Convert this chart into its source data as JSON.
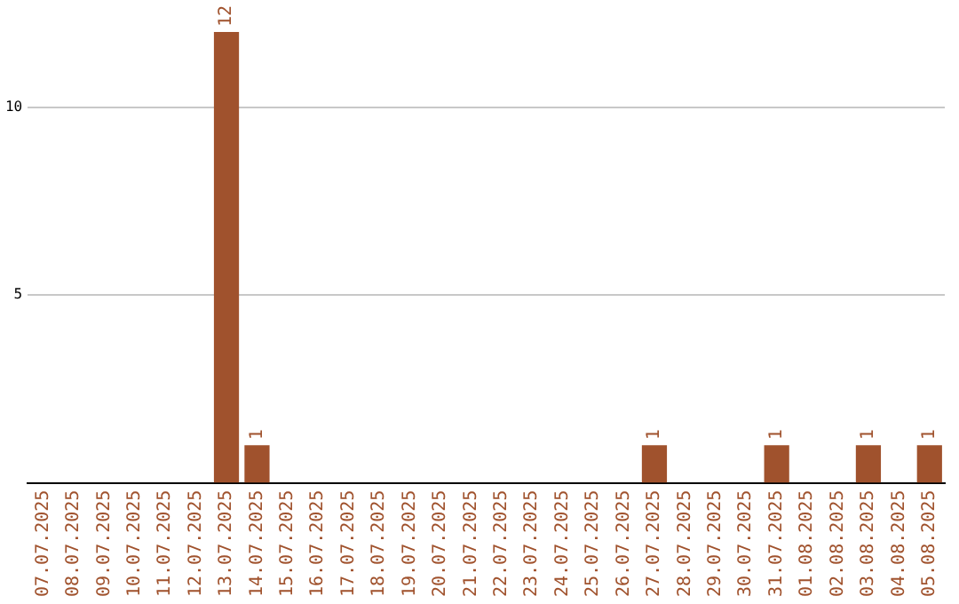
{
  "chart_data": {
    "type": "bar",
    "categories": [
      "07.07.2025",
      "08.07.2025",
      "09.07.2025",
      "10.07.2025",
      "11.07.2025",
      "12.07.2025",
      "13.07.2025",
      "14.07.2025",
      "15.07.2025",
      "16.07.2025",
      "17.07.2025",
      "18.07.2025",
      "19.07.2025",
      "20.07.2025",
      "21.07.2025",
      "22.07.2025",
      "23.07.2025",
      "24.07.2025",
      "25.07.2025",
      "26.07.2025",
      "27.07.2025",
      "28.07.2025",
      "29.07.2025",
      "30.07.2025",
      "31.07.2025",
      "01.08.2025",
      "02.08.2025",
      "03.08.2025",
      "04.08.2025",
      "05.08.2025"
    ],
    "values": [
      0,
      0,
      0,
      0,
      0,
      0,
      12,
      1,
      0,
      0,
      0,
      0,
      0,
      0,
      0,
      0,
      0,
      0,
      0,
      0,
      1,
      0,
      0,
      0,
      1,
      0,
      0,
      1,
      0,
      1
    ],
    "value_labels": [
      null,
      null,
      null,
      null,
      null,
      null,
      "12",
      "1",
      null,
      null,
      null,
      null,
      null,
      null,
      null,
      null,
      null,
      null,
      null,
      null,
      "1",
      null,
      null,
      null,
      "1",
      null,
      null,
      "1",
      null,
      "1"
    ],
    "color": "#a0522d",
    "ylim": [
      0,
      12
    ],
    "yticks": [
      5,
      10
    ],
    "grid": "y",
    "legend": false
  }
}
